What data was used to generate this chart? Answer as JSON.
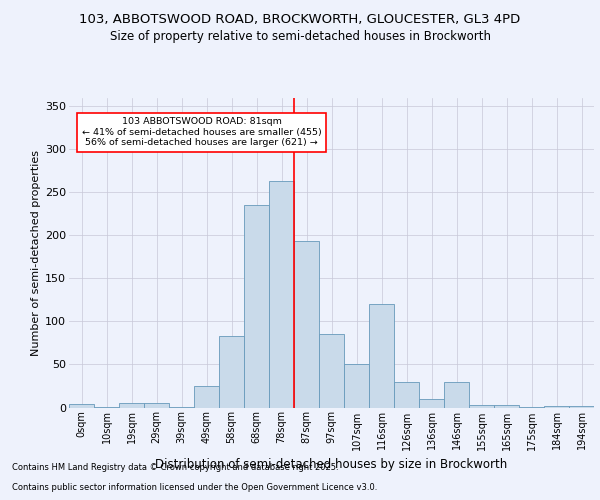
{
  "title_line1": "103, ABBOTSWOOD ROAD, BROCKWORTH, GLOUCESTER, GL3 4PD",
  "title_line2": "Size of property relative to semi-detached houses in Brockworth",
  "xlabel": "Distribution of semi-detached houses by size in Brockworth",
  "ylabel": "Number of semi-detached properties",
  "bins": [
    "0sqm",
    "10sqm",
    "19sqm",
    "29sqm",
    "39sqm",
    "49sqm",
    "58sqm",
    "68sqm",
    "78sqm",
    "87sqm",
    "97sqm",
    "107sqm",
    "116sqm",
    "126sqm",
    "136sqm",
    "146sqm",
    "155sqm",
    "165sqm",
    "175sqm",
    "184sqm",
    "194sqm"
  ],
  "values": [
    4,
    1,
    5,
    5,
    1,
    25,
    83,
    235,
    263,
    193,
    85,
    50,
    120,
    30,
    10,
    30,
    3,
    3,
    1,
    2,
    2
  ],
  "bar_color": "#c9daea",
  "bar_edge_color": "#6699bb",
  "background_color": "#eef2fc",
  "grid_color": "#c8c8d8",
  "ref_line_color": "red",
  "annotation_text": "103 ABBOTSWOOD ROAD: 81sqm\n← 41% of semi-detached houses are smaller (455)\n56% of semi-detached houses are larger (621) →",
  "annotation_box_color": "white",
  "annotation_box_edge": "red",
  "ylim": [
    0,
    360
  ],
  "yticks": [
    0,
    50,
    100,
    150,
    200,
    250,
    300,
    350
  ],
  "footer_line1": "Contains HM Land Registry data © Crown copyright and database right 2025.",
  "footer_line2": "Contains public sector information licensed under the Open Government Licence v3.0.",
  "title_fontsize": 9.5,
  "subtitle_fontsize": 8.5,
  "axis_label_fontsize": 8,
  "tick_fontsize": 7,
  "footer_fontsize": 6
}
